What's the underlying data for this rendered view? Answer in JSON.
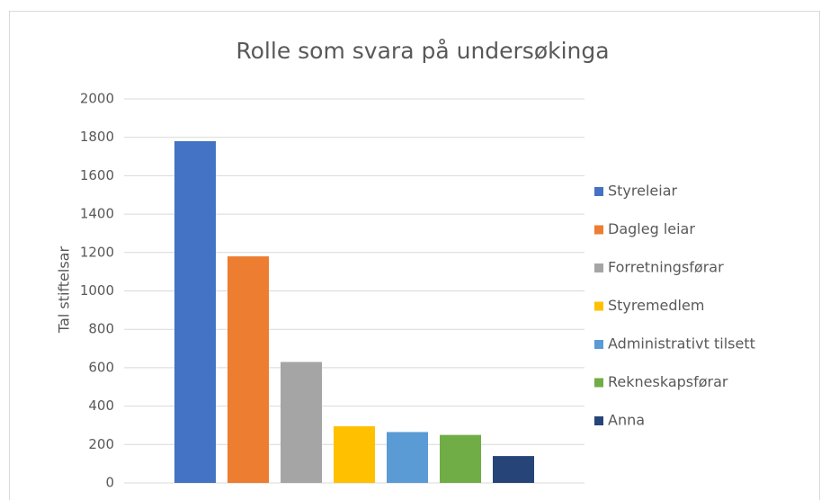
{
  "chart_data": {
    "type": "bar",
    "title": "Rolle som svara på undersøkinga",
    "y_label": "Tal stiftelsar",
    "categories": [
      null
    ],
    "series": [
      {
        "name": "Styreleiar",
        "color": "#4472c4",
        "values": [
          1780
        ]
      },
      {
        "name": "Dagleg leiar",
        "color": "#ed7d31",
        "values": [
          1180
        ]
      },
      {
        "name": "Forretningsførar",
        "color": "#a5a5a5",
        "values": [
          630
        ]
      },
      {
        "name": "Styremedlem",
        "color": "#ffc000",
        "values": [
          295
        ]
      },
      {
        "name": "Administrativt tilsett",
        "color": "#5b9bd5",
        "values": [
          265
        ]
      },
      {
        "name": "Rekneskapsførar",
        "color": "#70ad47",
        "values": [
          250
        ]
      },
      {
        "name": "Anna",
        "color": "#264478",
        "values": [
          140
        ]
      }
    ],
    "ylim": [
      0,
      2000
    ],
    "yticks": [
      0,
      200,
      400,
      600,
      800,
      1000,
      1200,
      1400,
      1600,
      1800,
      2000
    ],
    "grid": true,
    "legend": "right"
  }
}
